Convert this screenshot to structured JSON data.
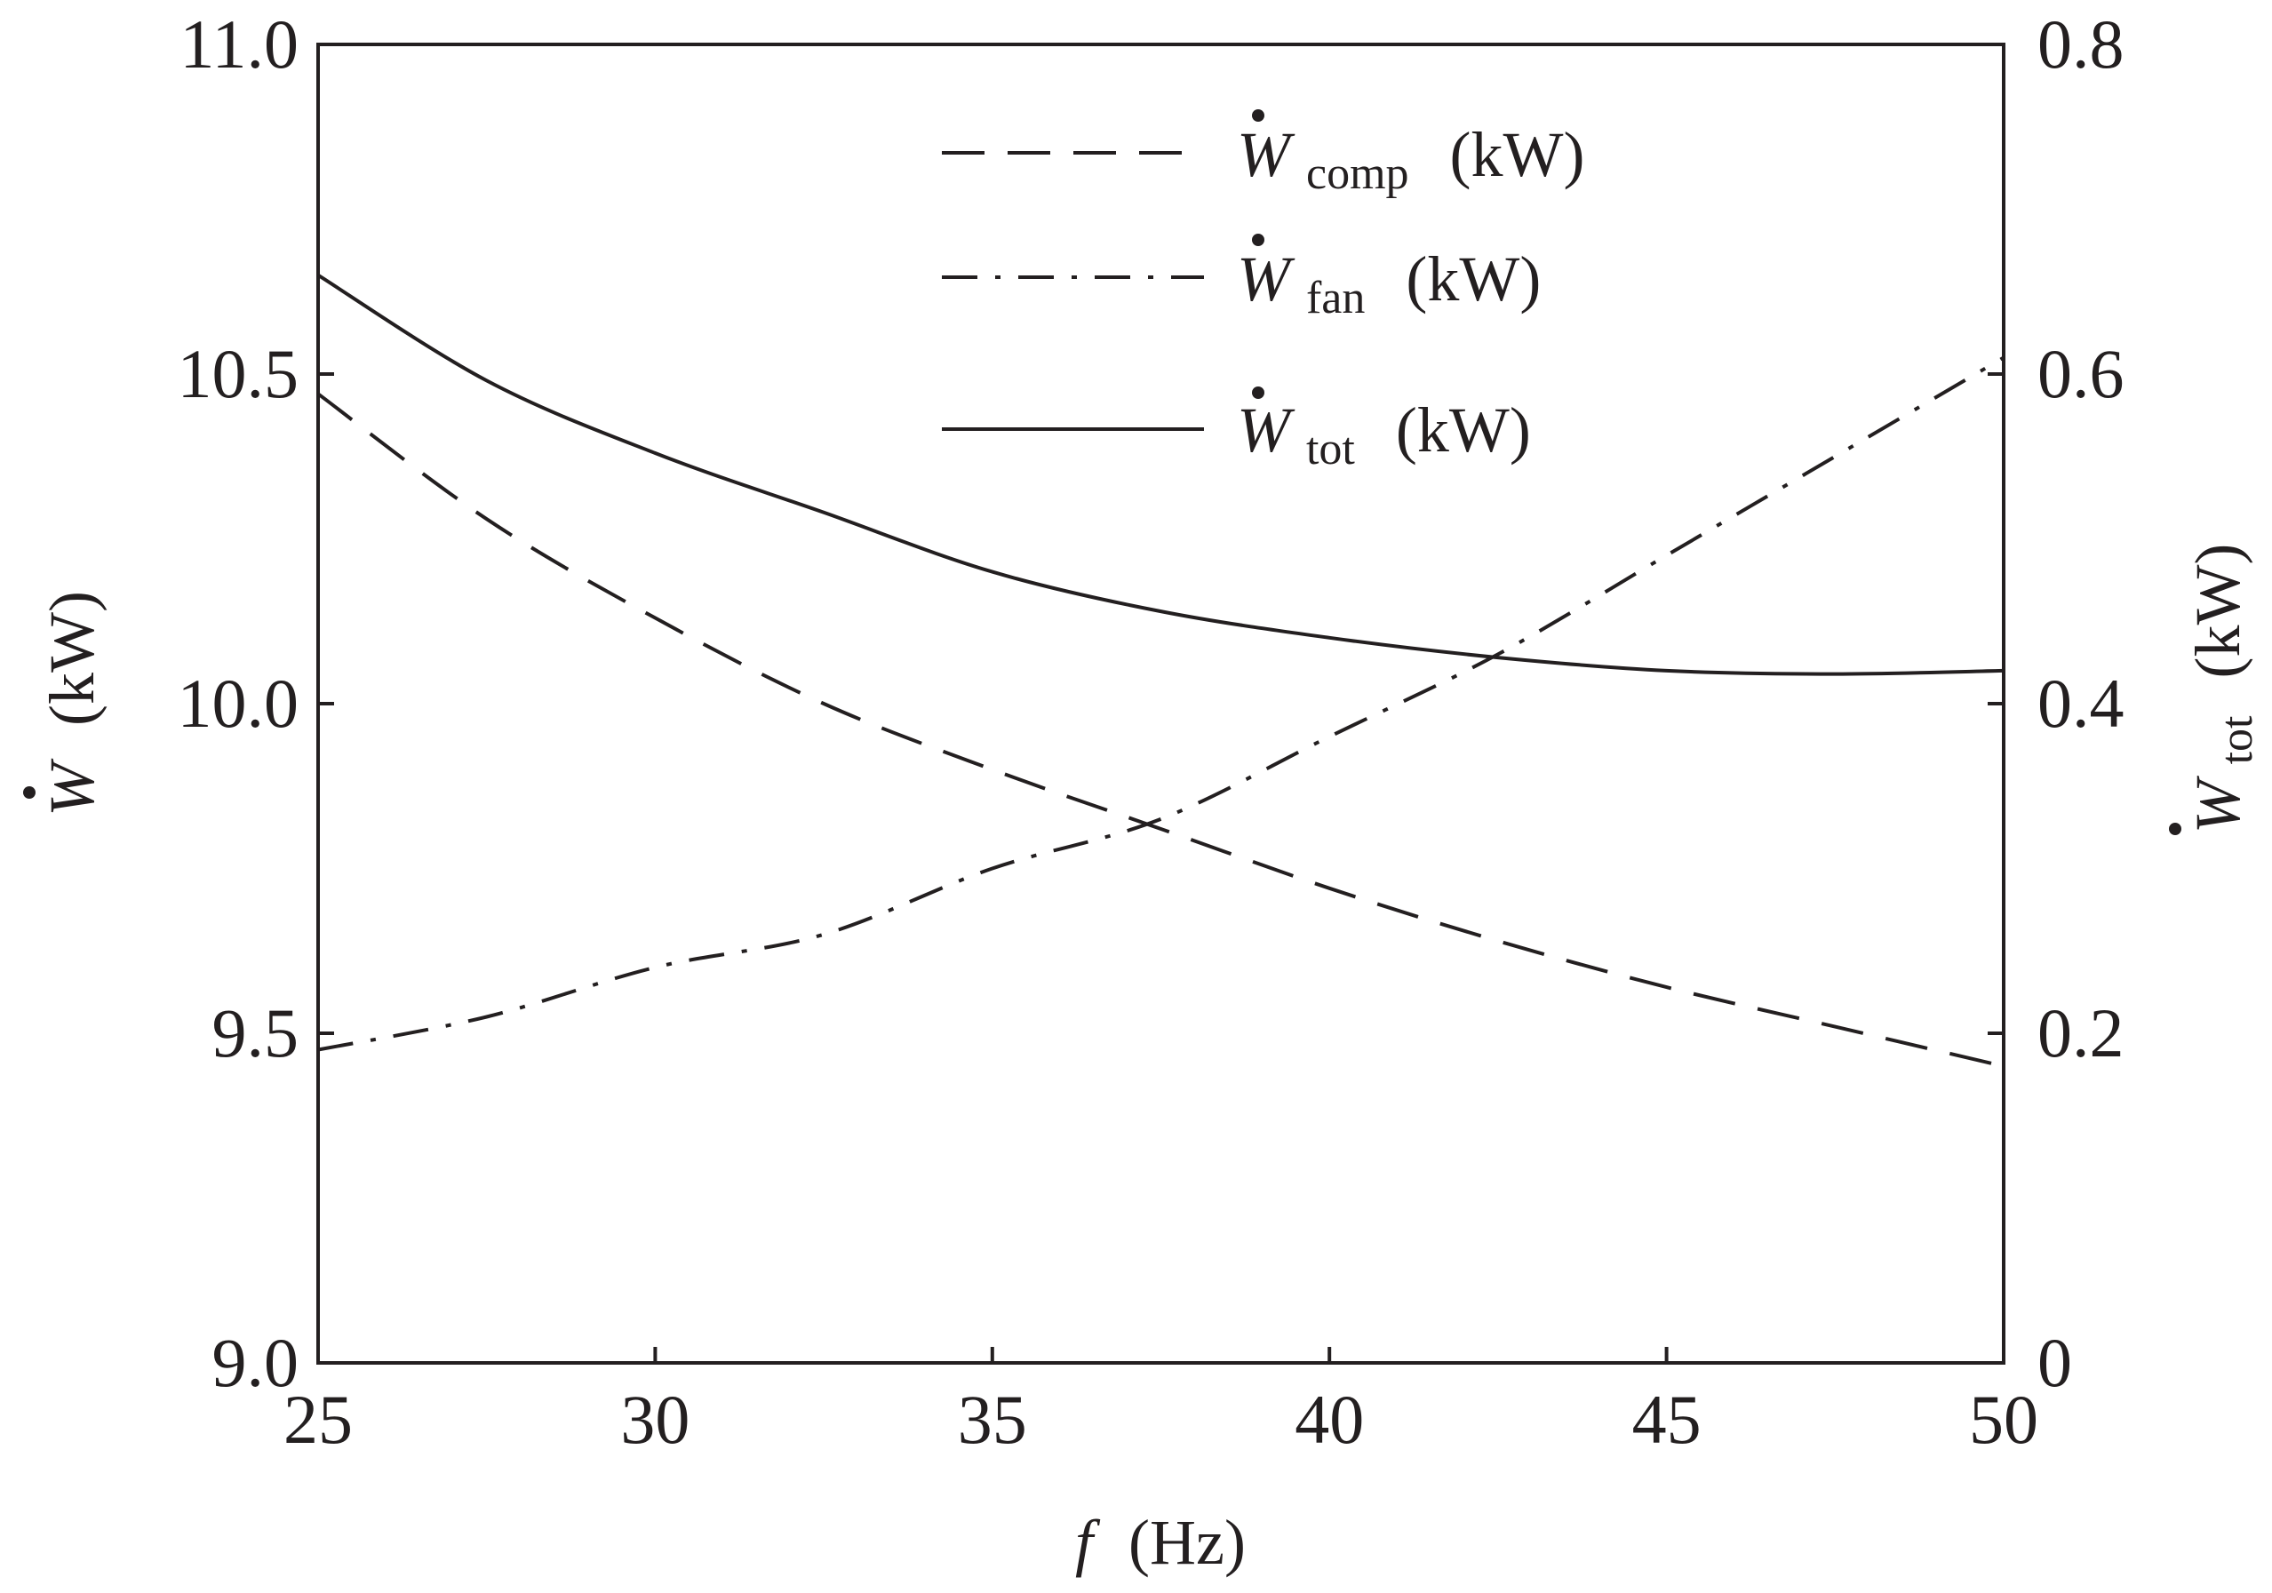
{
  "chart_data": {
    "type": "line",
    "xlabel": "f",
    "xlabel_unit": "(Hz)",
    "ylabel_left": "W",
    "ylabel_left_unit": "(kW)",
    "ylabel_right": "W",
    "ylabel_right_sub": "tot",
    "ylabel_right_unit": "(kW)",
    "xlim": [
      25,
      50
    ],
    "ylim_left": [
      9.0,
      11.0
    ],
    "ylim_right": [
      0,
      0.8
    ],
    "x_ticks": [
      "25",
      "30",
      "35",
      "40",
      "45",
      "50"
    ],
    "y_left_ticks": [
      "9.0",
      "9.5",
      "10.0",
      "10.5",
      "11.0"
    ],
    "y_right_ticks": [
      "0",
      "0.2",
      "0.4",
      "0.6",
      "0.8"
    ],
    "series": [
      {
        "name": "W comp (kW)",
        "symbol": "W",
        "sub": "comp",
        "unit": "(kW)",
        "style": "dashed",
        "axis": "left",
        "x": [
          25,
          27.5,
          30,
          32.5,
          35,
          37.5,
          40,
          42.5,
          45,
          47.5,
          50
        ],
        "y": [
          10.47,
          10.28,
          10.13,
          10.0,
          9.9,
          9.81,
          9.72,
          9.64,
          9.57,
          9.51,
          9.45
        ]
      },
      {
        "name": "W fan (kW)",
        "symbol": "W",
        "sub": "fan",
        "unit": "(kW)",
        "style": "dash-dot",
        "axis": "right",
        "x": [
          25,
          27.5,
          30,
          32.5,
          35,
          37.5,
          40,
          42.5,
          45,
          47.5,
          50
        ],
        "y": [
          0.19,
          0.21,
          0.24,
          0.26,
          0.3,
          0.33,
          0.38,
          0.43,
          0.49,
          0.55,
          0.61
        ]
      },
      {
        "name": "W tot (kW)",
        "symbol": "W",
        "sub": "tot",
        "unit": "(kW)",
        "style": "solid",
        "axis": "left",
        "x": [
          25,
          27.5,
          30,
          32.5,
          35,
          37.5,
          40,
          42.5,
          45,
          47.5,
          50
        ],
        "y": [
          10.65,
          10.49,
          10.38,
          10.29,
          10.2,
          10.14,
          10.1,
          10.07,
          10.05,
          10.045,
          10.05
        ]
      }
    ]
  }
}
